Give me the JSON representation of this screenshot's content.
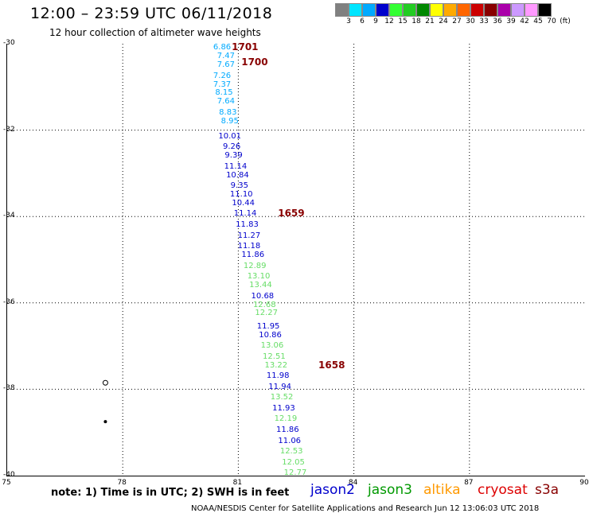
{
  "header": {
    "title": "12:00 – 23:59 UTC 06/11/2018",
    "subtitle": "12 hour collection of altimeter wave heights"
  },
  "legend": {
    "colors": [
      "#808080",
      "#00e5ff",
      "#00aaff",
      "#0000cc",
      "#33ff33",
      "#22cc22",
      "#008800",
      "#ffff00",
      "#ffaa00",
      "#ff6600",
      "#cc0000",
      "#880000",
      "#aa00aa",
      "#cc99ff",
      "#ff99ff",
      "#000000"
    ],
    "labels": [
      "3",
      "6",
      "9",
      "12",
      "15",
      "18",
      "21",
      "24",
      "27",
      "30",
      "33",
      "36",
      "39",
      "42",
      "45",
      "70",
      "(ft)"
    ]
  },
  "axes": {
    "y_ticks": [
      "-30",
      "-32",
      "-34",
      "-36",
      "-38",
      "-40"
    ],
    "x_ticks": [
      "75",
      "78",
      "81",
      "84",
      "87",
      "90"
    ]
  },
  "chart_data": {
    "type": "scatter",
    "xlim": [
      75,
      90
    ],
    "ylim": [
      -40,
      -30
    ],
    "units": "ft",
    "points": [
      {
        "v": "6.86",
        "lon": 80.6,
        "lat": -30.1,
        "c": "#00aaff"
      },
      {
        "v": "7.47",
        "lon": 80.7,
        "lat": -30.3,
        "c": "#00aaff"
      },
      {
        "v": "7.67",
        "lon": 80.7,
        "lat": -30.5,
        "c": "#00aaff"
      },
      {
        "v": "7.26",
        "lon": 80.6,
        "lat": -30.75,
        "c": "#00aaff"
      },
      {
        "v": "7.37",
        "lon": 80.6,
        "lat": -30.95,
        "c": "#00aaff"
      },
      {
        "v": "8.15",
        "lon": 80.65,
        "lat": -31.15,
        "c": "#00aaff"
      },
      {
        "v": "7.64",
        "lon": 80.7,
        "lat": -31.35,
        "c": "#00aaff"
      },
      {
        "v": "8.83",
        "lon": 80.75,
        "lat": -31.6,
        "c": "#00aaff"
      },
      {
        "v": "8.95",
        "lon": 80.8,
        "lat": -31.8,
        "c": "#00aaff"
      },
      {
        "v": "10.01",
        "lon": 80.8,
        "lat": -32.15,
        "c": "#0000cc"
      },
      {
        "v": "9.26",
        "lon": 80.85,
        "lat": -32.4,
        "c": "#0000cc"
      },
      {
        "v": "9.39",
        "lon": 80.9,
        "lat": -32.6,
        "c": "#0000cc"
      },
      {
        "v": "11.14",
        "lon": 80.95,
        "lat": -32.85,
        "c": "#0000cc"
      },
      {
        "v": "10.84",
        "lon": 81.0,
        "lat": -33.05,
        "c": "#0000cc"
      },
      {
        "v": "9.35",
        "lon": 81.05,
        "lat": -33.3,
        "c": "#0000cc"
      },
      {
        "v": "11.10",
        "lon": 81.1,
        "lat": -33.5,
        "c": "#0000cc"
      },
      {
        "v": "10.44",
        "lon": 81.15,
        "lat": -33.7,
        "c": "#0000cc"
      },
      {
        "v": "11.14",
        "lon": 81.2,
        "lat": -33.95,
        "c": "#0000cc"
      },
      {
        "v": "11.83",
        "lon": 81.25,
        "lat": -34.2,
        "c": "#0000cc"
      },
      {
        "v": "11.27",
        "lon": 81.3,
        "lat": -34.45,
        "c": "#0000cc"
      },
      {
        "v": "11.18",
        "lon": 81.3,
        "lat": -34.7,
        "c": "#0000cc"
      },
      {
        "v": "11.86",
        "lon": 81.4,
        "lat": -34.9,
        "c": "#0000cc"
      },
      {
        "v": "12.89",
        "lon": 81.45,
        "lat": -35.15,
        "c": "#66dd66"
      },
      {
        "v": "13.10",
        "lon": 81.55,
        "lat": -35.4,
        "c": "#66dd66"
      },
      {
        "v": "13.44",
        "lon": 81.6,
        "lat": -35.6,
        "c": "#66dd66"
      },
      {
        "v": "10.68",
        "lon": 81.65,
        "lat": -35.85,
        "c": "#0000cc"
      },
      {
        "v": "12.68",
        "lon": 81.7,
        "lat": -36.05,
        "c": "#66dd66"
      },
      {
        "v": "12.27",
        "lon": 81.75,
        "lat": -36.25,
        "c": "#66dd66"
      },
      {
        "v": "11.95",
        "lon": 81.8,
        "lat": -36.55,
        "c": "#0000cc"
      },
      {
        "v": "10.86",
        "lon": 81.85,
        "lat": -36.75,
        "c": "#0000cc"
      },
      {
        "v": "13.06",
        "lon": 81.9,
        "lat": -37.0,
        "c": "#66dd66"
      },
      {
        "v": "12.51",
        "lon": 81.95,
        "lat": -37.25,
        "c": "#66dd66"
      },
      {
        "v": "13.22",
        "lon": 82.0,
        "lat": -37.45,
        "c": "#66dd66"
      },
      {
        "v": "11.98",
        "lon": 82.05,
        "lat": -37.7,
        "c": "#0000cc"
      },
      {
        "v": "11.94",
        "lon": 82.1,
        "lat": -37.95,
        "c": "#0000cc"
      },
      {
        "v": "13.52",
        "lon": 82.15,
        "lat": -38.2,
        "c": "#66dd66"
      },
      {
        "v": "11.93",
        "lon": 82.2,
        "lat": -38.45,
        "c": "#0000cc"
      },
      {
        "v": "12.19",
        "lon": 82.25,
        "lat": -38.7,
        "c": "#66dd66"
      },
      {
        "v": "11.86",
        "lon": 82.3,
        "lat": -38.95,
        "c": "#0000cc"
      },
      {
        "v": "11.06",
        "lon": 82.35,
        "lat": -39.2,
        "c": "#0000cc"
      },
      {
        "v": "12.53",
        "lon": 82.4,
        "lat": -39.45,
        "c": "#66dd66"
      },
      {
        "v": "12.05",
        "lon": 82.45,
        "lat": -39.7,
        "c": "#66dd66"
      },
      {
        "v": "12.77",
        "lon": 82.5,
        "lat": -39.95,
        "c": "#66dd66"
      }
    ],
    "time_labels": [
      {
        "t": "1701",
        "lon": 80.85,
        "lat": -30.1
      },
      {
        "t": "1700",
        "lon": 81.1,
        "lat": -30.45
      },
      {
        "t": "1659",
        "lon": 82.05,
        "lat": -33.95
      },
      {
        "t": "1658",
        "lon": 83.1,
        "lat": -37.45
      }
    ]
  },
  "note": "note: 1) Time is in UTC; 2) SWH is in feet",
  "satellites": [
    {
      "name": "jason2",
      "color": "#0000cc"
    },
    {
      "name": "jason3",
      "color": "#009900"
    },
    {
      "name": "altika",
      "color": "#ff9900"
    },
    {
      "name": "cryosat",
      "color": "#dd0000"
    },
    {
      "name": "s3a",
      "color": "#880000"
    }
  ],
  "footer": "NOAA/NESDIS Center for Satellite Applications and Research     Jun 12 13:06:03 UTC 2018"
}
